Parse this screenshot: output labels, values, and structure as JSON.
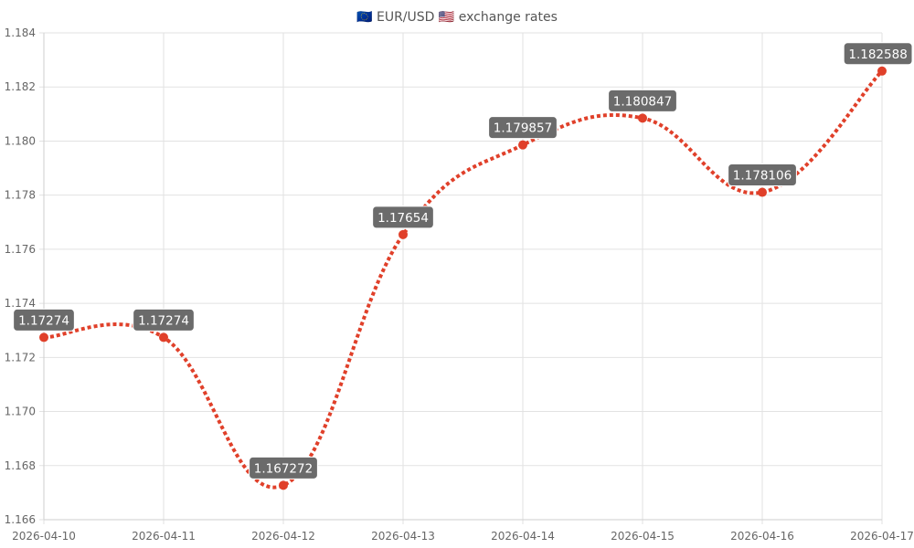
{
  "chart_data": {
    "type": "line",
    "title": "🇪🇺 EUR/USD 🇺🇸 exchange rates",
    "xlabel": "",
    "ylabel": "",
    "categories": [
      "2026-04-10",
      "2026-04-11",
      "2026-04-12",
      "2026-04-13",
      "2026-04-14",
      "2026-04-15",
      "2026-04-16",
      "2026-04-17"
    ],
    "y_ticks": [
      "1.166",
      "1.168",
      "1.170",
      "1.172",
      "1.174",
      "1.176",
      "1.178",
      "1.180",
      "1.182",
      "1.184"
    ],
    "ylim": [
      1.166,
      1.184
    ],
    "series": [
      {
        "values": [
          1.17274,
          1.17274,
          1.167272,
          1.17654,
          1.179857,
          1.180847,
          1.178106,
          1.182588
        ],
        "labels": [
          "1.17274",
          "1.17274",
          "1.167272",
          "1.17654",
          "1.179857",
          "1.180847",
          "1.178106",
          "1.182588"
        ],
        "color": "#e0402a"
      }
    ],
    "line_style": "dotted",
    "curve": "smooth",
    "grid": true,
    "legend": "none",
    "label_background": "#6b6b6b"
  }
}
